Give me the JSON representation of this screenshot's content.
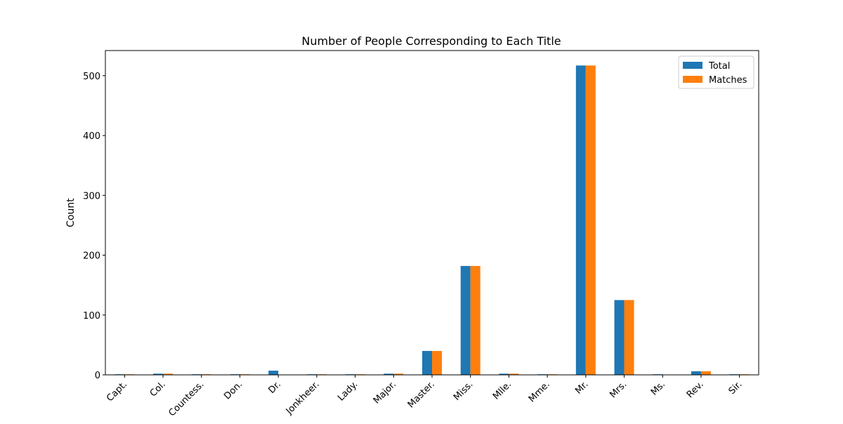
{
  "chart_data": {
    "type": "bar",
    "title": "Number of People Corresponding to Each Title",
    "xlabel": "",
    "ylabel": "Count",
    "categories": [
      "Capt.",
      "Col.",
      "Countess.",
      "Don.",
      "Dr.",
      "Jonkheer.",
      "Lady.",
      "Major.",
      "Master.",
      "Miss.",
      "Mlle.",
      "Mme.",
      "Mr.",
      "Mrs.",
      "Ms.",
      "Rev.",
      "Sir."
    ],
    "series": [
      {
        "name": "Total",
        "color": "#1f77b4",
        "values": [
          1,
          2,
          1,
          1,
          7,
          1,
          1,
          2,
          40,
          182,
          2,
          1,
          517,
          125,
          1,
          6,
          1
        ]
      },
      {
        "name": "Matches",
        "color": "#ff7f0e",
        "values": [
          1,
          2,
          1,
          1,
          0,
          1,
          1,
          2,
          40,
          182,
          2,
          1,
          517,
          125,
          0,
          6,
          1
        ]
      }
    ],
    "ylim": [
      0,
      542
    ],
    "yticks": [
      0,
      100,
      200,
      300,
      400,
      500
    ],
    "grid": false,
    "legend_position": "top-right"
  }
}
